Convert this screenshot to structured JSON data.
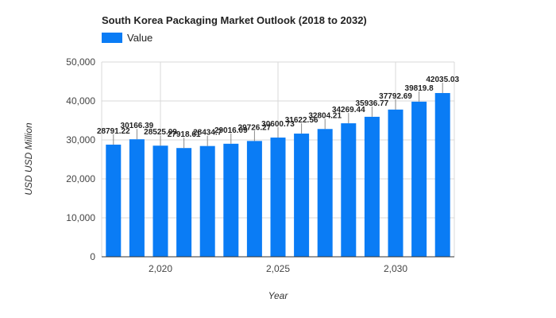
{
  "chart_data": {
    "type": "bar",
    "title": "South Korea Packaging Market Outlook (2018 to 2032)",
    "xlabel": "Year",
    "ylabel": "USD USD Million",
    "legend": {
      "position": "top-left",
      "entries": [
        "Value"
      ]
    },
    "grid": true,
    "x": [
      2018,
      2019,
      2020,
      2021,
      2022,
      2023,
      2024,
      2025,
      2026,
      2027,
      2028,
      2029,
      2030,
      2031,
      2032
    ],
    "series": [
      {
        "name": "Value",
        "color": "#0a7cf5",
        "values": [
          28791.22,
          30166.39,
          28525.09,
          27918.61,
          28434.7,
          29016.09,
          29726.27,
          30600.73,
          31622.56,
          32804.21,
          34269.44,
          35936.77,
          37792.69,
          39819.8,
          42035.03
        ],
        "labels": [
          "28791.22",
          "30166.39",
          "28525.09",
          "27918.61",
          "28434.7",
          "29016.09",
          "29726.27",
          "30600.73",
          "31622.56",
          "32804.21",
          "34269.44",
          "35936.77",
          "37792.69",
          "39819.8",
          "42035.03"
        ]
      }
    ],
    "xticks": [
      {
        "value": 2020,
        "label": "2,020"
      },
      {
        "value": 2025,
        "label": "2,025"
      },
      {
        "value": 2030,
        "label": "2,030"
      }
    ],
    "yticks": [
      {
        "value": 0,
        "label": "0"
      },
      {
        "value": 10000,
        "label": "10,000"
      },
      {
        "value": 20000,
        "label": "20,000"
      },
      {
        "value": 30000,
        "label": "30,000"
      },
      {
        "value": 40000,
        "label": "40,000"
      },
      {
        "value": 50000,
        "label": "50,000"
      }
    ],
    "ylim": [
      0,
      50000
    ]
  }
}
